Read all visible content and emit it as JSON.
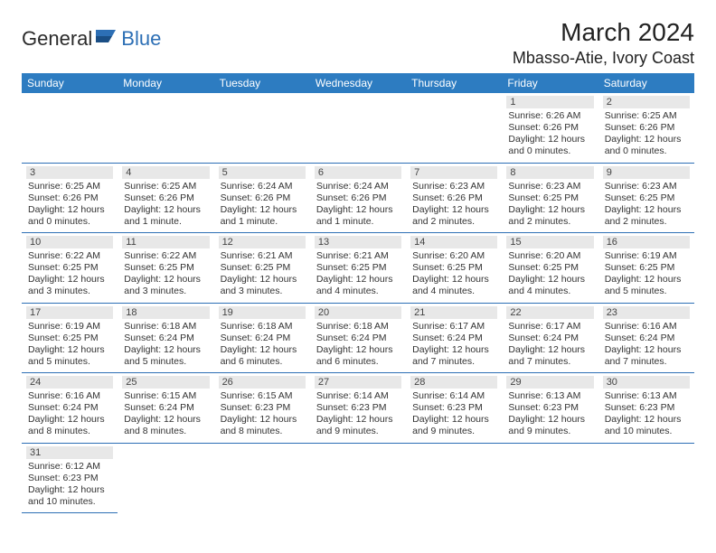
{
  "brand": {
    "text1": "General",
    "text2": "Blue"
  },
  "title": "March 2024",
  "location": "Mbasso-Atie, Ivory Coast",
  "colors": {
    "header_bg": "#2d7cc1",
    "header_text": "#ffffff",
    "day_bg": "#e8e8e8",
    "rule": "#2d6fb5",
    "brand_blue": "#2d6fb5"
  },
  "weekdays": [
    "Sunday",
    "Monday",
    "Tuesday",
    "Wednesday",
    "Thursday",
    "Friday",
    "Saturday"
  ],
  "weeks": [
    [
      null,
      null,
      null,
      null,
      null,
      {
        "n": "1",
        "sr": "Sunrise: 6:26 AM",
        "ss": "Sunset: 6:26 PM",
        "d1": "Daylight: 12 hours",
        "d2": "and 0 minutes."
      },
      {
        "n": "2",
        "sr": "Sunrise: 6:25 AM",
        "ss": "Sunset: 6:26 PM",
        "d1": "Daylight: 12 hours",
        "d2": "and 0 minutes."
      }
    ],
    [
      {
        "n": "3",
        "sr": "Sunrise: 6:25 AM",
        "ss": "Sunset: 6:26 PM",
        "d1": "Daylight: 12 hours",
        "d2": "and 0 minutes."
      },
      {
        "n": "4",
        "sr": "Sunrise: 6:25 AM",
        "ss": "Sunset: 6:26 PM",
        "d1": "Daylight: 12 hours",
        "d2": "and 1 minute."
      },
      {
        "n": "5",
        "sr": "Sunrise: 6:24 AM",
        "ss": "Sunset: 6:26 PM",
        "d1": "Daylight: 12 hours",
        "d2": "and 1 minute."
      },
      {
        "n": "6",
        "sr": "Sunrise: 6:24 AM",
        "ss": "Sunset: 6:26 PM",
        "d1": "Daylight: 12 hours",
        "d2": "and 1 minute."
      },
      {
        "n": "7",
        "sr": "Sunrise: 6:23 AM",
        "ss": "Sunset: 6:26 PM",
        "d1": "Daylight: 12 hours",
        "d2": "and 2 minutes."
      },
      {
        "n": "8",
        "sr": "Sunrise: 6:23 AM",
        "ss": "Sunset: 6:25 PM",
        "d1": "Daylight: 12 hours",
        "d2": "and 2 minutes."
      },
      {
        "n": "9",
        "sr": "Sunrise: 6:23 AM",
        "ss": "Sunset: 6:25 PM",
        "d1": "Daylight: 12 hours",
        "d2": "and 2 minutes."
      }
    ],
    [
      {
        "n": "10",
        "sr": "Sunrise: 6:22 AM",
        "ss": "Sunset: 6:25 PM",
        "d1": "Daylight: 12 hours",
        "d2": "and 3 minutes."
      },
      {
        "n": "11",
        "sr": "Sunrise: 6:22 AM",
        "ss": "Sunset: 6:25 PM",
        "d1": "Daylight: 12 hours",
        "d2": "and 3 minutes."
      },
      {
        "n": "12",
        "sr": "Sunrise: 6:21 AM",
        "ss": "Sunset: 6:25 PM",
        "d1": "Daylight: 12 hours",
        "d2": "and 3 minutes."
      },
      {
        "n": "13",
        "sr": "Sunrise: 6:21 AM",
        "ss": "Sunset: 6:25 PM",
        "d1": "Daylight: 12 hours",
        "d2": "and 4 minutes."
      },
      {
        "n": "14",
        "sr": "Sunrise: 6:20 AM",
        "ss": "Sunset: 6:25 PM",
        "d1": "Daylight: 12 hours",
        "d2": "and 4 minutes."
      },
      {
        "n": "15",
        "sr": "Sunrise: 6:20 AM",
        "ss": "Sunset: 6:25 PM",
        "d1": "Daylight: 12 hours",
        "d2": "and 4 minutes."
      },
      {
        "n": "16",
        "sr": "Sunrise: 6:19 AM",
        "ss": "Sunset: 6:25 PM",
        "d1": "Daylight: 12 hours",
        "d2": "and 5 minutes."
      }
    ],
    [
      {
        "n": "17",
        "sr": "Sunrise: 6:19 AM",
        "ss": "Sunset: 6:25 PM",
        "d1": "Daylight: 12 hours",
        "d2": "and 5 minutes."
      },
      {
        "n": "18",
        "sr": "Sunrise: 6:18 AM",
        "ss": "Sunset: 6:24 PM",
        "d1": "Daylight: 12 hours",
        "d2": "and 5 minutes."
      },
      {
        "n": "19",
        "sr": "Sunrise: 6:18 AM",
        "ss": "Sunset: 6:24 PM",
        "d1": "Daylight: 12 hours",
        "d2": "and 6 minutes."
      },
      {
        "n": "20",
        "sr": "Sunrise: 6:18 AM",
        "ss": "Sunset: 6:24 PM",
        "d1": "Daylight: 12 hours",
        "d2": "and 6 minutes."
      },
      {
        "n": "21",
        "sr": "Sunrise: 6:17 AM",
        "ss": "Sunset: 6:24 PM",
        "d1": "Daylight: 12 hours",
        "d2": "and 7 minutes."
      },
      {
        "n": "22",
        "sr": "Sunrise: 6:17 AM",
        "ss": "Sunset: 6:24 PM",
        "d1": "Daylight: 12 hours",
        "d2": "and 7 minutes."
      },
      {
        "n": "23",
        "sr": "Sunrise: 6:16 AM",
        "ss": "Sunset: 6:24 PM",
        "d1": "Daylight: 12 hours",
        "d2": "and 7 minutes."
      }
    ],
    [
      {
        "n": "24",
        "sr": "Sunrise: 6:16 AM",
        "ss": "Sunset: 6:24 PM",
        "d1": "Daylight: 12 hours",
        "d2": "and 8 minutes."
      },
      {
        "n": "25",
        "sr": "Sunrise: 6:15 AM",
        "ss": "Sunset: 6:24 PM",
        "d1": "Daylight: 12 hours",
        "d2": "and 8 minutes."
      },
      {
        "n": "26",
        "sr": "Sunrise: 6:15 AM",
        "ss": "Sunset: 6:23 PM",
        "d1": "Daylight: 12 hours",
        "d2": "and 8 minutes."
      },
      {
        "n": "27",
        "sr": "Sunrise: 6:14 AM",
        "ss": "Sunset: 6:23 PM",
        "d1": "Daylight: 12 hours",
        "d2": "and 9 minutes."
      },
      {
        "n": "28",
        "sr": "Sunrise: 6:14 AM",
        "ss": "Sunset: 6:23 PM",
        "d1": "Daylight: 12 hours",
        "d2": "and 9 minutes."
      },
      {
        "n": "29",
        "sr": "Sunrise: 6:13 AM",
        "ss": "Sunset: 6:23 PM",
        "d1": "Daylight: 12 hours",
        "d2": "and 9 minutes."
      },
      {
        "n": "30",
        "sr": "Sunrise: 6:13 AM",
        "ss": "Sunset: 6:23 PM",
        "d1": "Daylight: 12 hours",
        "d2": "and 10 minutes."
      }
    ],
    [
      {
        "n": "31",
        "sr": "Sunrise: 6:12 AM",
        "ss": "Sunset: 6:23 PM",
        "d1": "Daylight: 12 hours",
        "d2": "and 10 minutes."
      },
      null,
      null,
      null,
      null,
      null,
      null
    ]
  ]
}
